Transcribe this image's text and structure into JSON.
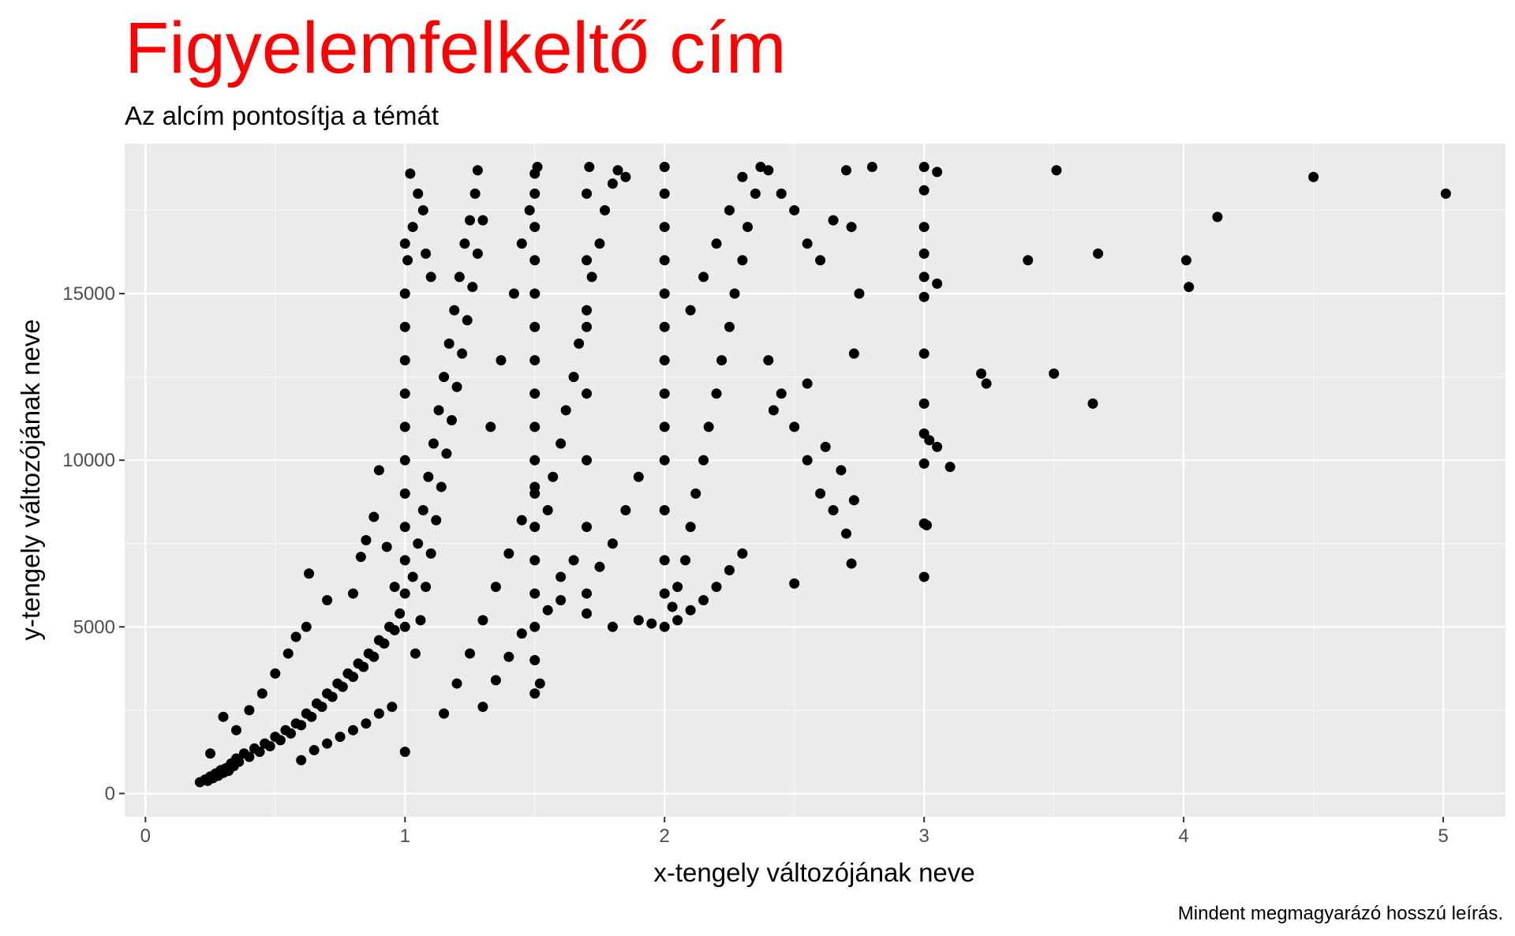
{
  "chart_data": {
    "type": "scatter",
    "title": "Figyelemfelkeltő cím",
    "subtitle": "Az alcím pontosítja a témát",
    "xlabel": "x-tengely változójának neve",
    "ylabel": "y-tengely változójának neve",
    "caption": "Mindent megmagyarázó hosszú leírás.",
    "xlim": [
      -0.08,
      5.24
    ],
    "ylim": [
      -700,
      19500
    ],
    "x_ticks": [
      0,
      1,
      2,
      3,
      4,
      5
    ],
    "x_tick_labels": [
      "0",
      "1",
      "2",
      "3",
      "4",
      "5"
    ],
    "y_ticks": [
      0,
      5000,
      10000,
      15000
    ],
    "y_tick_labels": [
      "0",
      "5000",
      "10000",
      "15000"
    ],
    "grid": true,
    "legend": "none",
    "colors": {
      "title": "#ff0000",
      "panel_background": "#ebebeb",
      "grid_major": "#ffffff",
      "grid_minor": "#f5f5f5",
      "point": "#000000",
      "tick_label": "#4d4d4d"
    },
    "points": [
      [
        0.21,
        340
      ],
      [
        0.23,
        420
      ],
      [
        0.24,
        380
      ],
      [
        0.25,
        510
      ],
      [
        0.26,
        460
      ],
      [
        0.27,
        600
      ],
      [
        0.28,
        530
      ],
      [
        0.29,
        700
      ],
      [
        0.3,
        620
      ],
      [
        0.31,
        760
      ],
      [
        0.32,
        680
      ],
      [
        0.33,
        900
      ],
      [
        0.34,
        820
      ],
      [
        0.35,
        1050
      ],
      [
        0.36,
        950
      ],
      [
        0.38,
        1200
      ],
      [
        0.4,
        1100
      ],
      [
        0.42,
        1350
      ],
      [
        0.44,
        1250
      ],
      [
        0.46,
        1500
      ],
      [
        0.48,
        1420
      ],
      [
        0.5,
        1700
      ],
      [
        0.52,
        1600
      ],
      [
        0.54,
        1900
      ],
      [
        0.56,
        1800
      ],
      [
        0.58,
        2100
      ],
      [
        0.6,
        2050
      ],
      [
        0.62,
        2400
      ],
      [
        0.64,
        2300
      ],
      [
        0.66,
        2700
      ],
      [
        0.68,
        2600
      ],
      [
        0.7,
        3000
      ],
      [
        0.72,
        2900
      ],
      [
        0.74,
        3300
      ],
      [
        0.76,
        3200
      ],
      [
        0.78,
        3600
      ],
      [
        0.8,
        3500
      ],
      [
        0.82,
        3900
      ],
      [
        0.84,
        3800
      ],
      [
        0.86,
        4200
      ],
      [
        0.88,
        4100
      ],
      [
        0.9,
        4600
      ],
      [
        0.92,
        4500
      ],
      [
        0.94,
        5000
      ],
      [
        0.96,
        4900
      ],
      [
        0.98,
        5400
      ],
      [
        0.25,
        1200
      ],
      [
        0.3,
        2300
      ],
      [
        0.35,
        1900
      ],
      [
        0.4,
        2500
      ],
      [
        0.45,
        3000
      ],
      [
        0.5,
        3600
      ],
      [
        0.55,
        4200
      ],
      [
        0.58,
        4700
      ],
      [
        0.62,
        5000
      ],
      [
        0.63,
        6600
      ],
      [
        0.7,
        5800
      ],
      [
        0.8,
        6000
      ],
      [
        0.83,
        7100
      ],
      [
        0.85,
        7600
      ],
      [
        0.88,
        8300
      ],
      [
        0.9,
        9700
      ],
      [
        0.93,
        7400
      ],
      [
        0.96,
        6200
      ],
      [
        0.6,
        1000
      ],
      [
        0.65,
        1300
      ],
      [
        0.7,
        1500
      ],
      [
        0.75,
        1700
      ],
      [
        0.8,
        1900
      ],
      [
        0.85,
        2100
      ],
      [
        0.9,
        2400
      ],
      [
        0.95,
        2600
      ],
      [
        1.0,
        1250
      ],
      [
        1.0,
        5000
      ],
      [
        1.0,
        6000
      ],
      [
        1.0,
        7000
      ],
      [
        1.0,
        8000
      ],
      [
        1.0,
        9000
      ],
      [
        1.0,
        10000
      ],
      [
        1.0,
        11000
      ],
      [
        1.0,
        12000
      ],
      [
        1.0,
        13000
      ],
      [
        1.0,
        14000
      ],
      [
        1.0,
        15000
      ],
      [
        1.01,
        16000
      ],
      [
        1.0,
        16500
      ],
      [
        1.02,
        18600
      ],
      [
        1.03,
        17000
      ],
      [
        1.05,
        18000
      ],
      [
        1.07,
        17500
      ],
      [
        1.08,
        16200
      ],
      [
        1.1,
        15500
      ],
      [
        1.03,
        6500
      ],
      [
        1.05,
        7500
      ],
      [
        1.07,
        8500
      ],
      [
        1.09,
        9500
      ],
      [
        1.11,
        10500
      ],
      [
        1.13,
        11500
      ],
      [
        1.15,
        12500
      ],
      [
        1.17,
        13500
      ],
      [
        1.19,
        14500
      ],
      [
        1.21,
        15500
      ],
      [
        1.23,
        16500
      ],
      [
        1.25,
        17200
      ],
      [
        1.27,
        18000
      ],
      [
        1.28,
        18700
      ],
      [
        1.04,
        4200
      ],
      [
        1.06,
        5200
      ],
      [
        1.08,
        6200
      ],
      [
        1.1,
        7200
      ],
      [
        1.12,
        8200
      ],
      [
        1.14,
        9200
      ],
      [
        1.16,
        10200
      ],
      [
        1.18,
        11200
      ],
      [
        1.2,
        12200
      ],
      [
        1.22,
        13200
      ],
      [
        1.24,
        14200
      ],
      [
        1.26,
        15200
      ],
      [
        1.28,
        16200
      ],
      [
        1.3,
        17200
      ],
      [
        1.15,
        2400
      ],
      [
        1.2,
        3300
      ],
      [
        1.25,
        4200
      ],
      [
        1.3,
        5200
      ],
      [
        1.35,
        6200
      ],
      [
        1.4,
        7200
      ],
      [
        1.45,
        8200
      ],
      [
        1.5,
        9200
      ],
      [
        1.3,
        2600
      ],
      [
        1.35,
        3400
      ],
      [
        1.4,
        4100
      ],
      [
        1.45,
        4800
      ],
      [
        1.33,
        11000
      ],
      [
        1.37,
        13000
      ],
      [
        1.42,
        15000
      ],
      [
        1.45,
        16500
      ],
      [
        1.48,
        17500
      ],
      [
        1.5,
        18600
      ],
      [
        1.5,
        3000
      ],
      [
        1.5,
        4000
      ],
      [
        1.5,
        5000
      ],
      [
        1.5,
        6000
      ],
      [
        1.5,
        7000
      ],
      [
        1.5,
        8000
      ],
      [
        1.5,
        9000
      ],
      [
        1.5,
        10000
      ],
      [
        1.5,
        11000
      ],
      [
        1.5,
        12000
      ],
      [
        1.5,
        13000
      ],
      [
        1.5,
        14000
      ],
      [
        1.5,
        15000
      ],
      [
        1.5,
        16000
      ],
      [
        1.5,
        17000
      ],
      [
        1.5,
        18000
      ],
      [
        1.51,
        18800
      ],
      [
        1.52,
        3300
      ],
      [
        1.55,
        8500
      ],
      [
        1.57,
        9500
      ],
      [
        1.6,
        10500
      ],
      [
        1.62,
        11500
      ],
      [
        1.65,
        12500
      ],
      [
        1.67,
        13500
      ],
      [
        1.7,
        14500
      ],
      [
        1.72,
        15500
      ],
      [
        1.75,
        16500
      ],
      [
        1.77,
        17500
      ],
      [
        1.8,
        18300
      ],
      [
        1.82,
        18700
      ],
      [
        1.85,
        18500
      ],
      [
        1.55,
        5500
      ],
      [
        1.6,
        6500
      ],
      [
        1.65,
        7000
      ],
      [
        1.7,
        6000
      ],
      [
        1.75,
        6800
      ],
      [
        1.8,
        7500
      ],
      [
        1.85,
        8500
      ],
      [
        1.9,
        9500
      ],
      [
        1.6,
        5800
      ],
      [
        1.7,
        5400
      ],
      [
        1.8,
        5000
      ],
      [
        1.9,
        5200
      ],
      [
        1.95,
        5100
      ],
      [
        1.7,
        8000
      ],
      [
        1.7,
        10000
      ],
      [
        1.7,
        12000
      ],
      [
        1.7,
        14000
      ],
      [
        1.7,
        16000
      ],
      [
        1.7,
        18000
      ],
      [
        1.71,
        18800
      ],
      [
        2.0,
        5000
      ],
      [
        2.0,
        6000
      ],
      [
        2.0,
        7000
      ],
      [
        2.0,
        8500
      ],
      [
        2.0,
        10000
      ],
      [
        2.0,
        11000
      ],
      [
        2.0,
        12000
      ],
      [
        2.0,
        13000
      ],
      [
        2.0,
        14000
      ],
      [
        2.0,
        15000
      ],
      [
        2.0,
        16000
      ],
      [
        2.0,
        17000
      ],
      [
        2.0,
        18000
      ],
      [
        2.0,
        18800
      ],
      [
        2.03,
        5600
      ],
      [
        2.05,
        6200
      ],
      [
        2.08,
        7000
      ],
      [
        2.1,
        8000
      ],
      [
        2.12,
        9000
      ],
      [
        2.15,
        10000
      ],
      [
        2.17,
        11000
      ],
      [
        2.2,
        12000
      ],
      [
        2.22,
        13000
      ],
      [
        2.25,
        14000
      ],
      [
        2.27,
        15000
      ],
      [
        2.3,
        16000
      ],
      [
        2.32,
        17000
      ],
      [
        2.35,
        18000
      ],
      [
        2.37,
        18800
      ],
      [
        2.05,
        5200
      ],
      [
        2.1,
        5500
      ],
      [
        2.15,
        5800
      ],
      [
        2.2,
        6200
      ],
      [
        2.25,
        6700
      ],
      [
        2.3,
        7200
      ],
      [
        2.1,
        14500
      ],
      [
        2.15,
        15500
      ],
      [
        2.2,
        16500
      ],
      [
        2.25,
        17500
      ],
      [
        2.3,
        18500
      ],
      [
        2.4,
        18700
      ],
      [
        2.45,
        18000
      ],
      [
        2.5,
        17500
      ],
      [
        2.55,
        16500
      ],
      [
        2.6,
        16000
      ],
      [
        2.65,
        17200
      ],
      [
        2.7,
        18700
      ],
      [
        2.72,
        17000
      ],
      [
        2.73,
        13200
      ],
      [
        2.75,
        15000
      ],
      [
        2.8,
        18800
      ],
      [
        2.4,
        13000
      ],
      [
        2.45,
        12000
      ],
      [
        2.5,
        11000
      ],
      [
        2.55,
        10000
      ],
      [
        2.6,
        9000
      ],
      [
        2.65,
        8500
      ],
      [
        2.7,
        7800
      ],
      [
        2.5,
        6300
      ],
      [
        2.72,
        6900
      ],
      [
        2.73,
        8800
      ],
      [
        2.68,
        9700
      ],
      [
        2.62,
        10400
      ],
      [
        2.55,
        12300
      ],
      [
        2.42,
        11500
      ],
      [
        3.0,
        6500
      ],
      [
        3.0,
        8100
      ],
      [
        3.0,
        9900
      ],
      [
        3.0,
        10800
      ],
      [
        3.0,
        11700
      ],
      [
        3.0,
        13200
      ],
      [
        3.0,
        14900
      ],
      [
        3.0,
        15500
      ],
      [
        3.0,
        16200
      ],
      [
        3.0,
        17000
      ],
      [
        3.0,
        18100
      ],
      [
        3.0,
        18800
      ],
      [
        3.01,
        8050
      ],
      [
        3.02,
        10600
      ],
      [
        3.05,
        18650
      ],
      [
        3.05,
        10400
      ],
      [
        3.05,
        15300
      ],
      [
        3.1,
        9800
      ],
      [
        3.22,
        12600
      ],
      [
        3.24,
        12300
      ],
      [
        3.4,
        16000
      ],
      [
        3.5,
        12600
      ],
      [
        3.51,
        18700
      ],
      [
        3.65,
        11700
      ],
      [
        3.67,
        16200
      ],
      [
        4.01,
        16000
      ],
      [
        4.02,
        15200
      ],
      [
        4.13,
        17300
      ],
      [
        4.5,
        18500
      ],
      [
        5.01,
        18000
      ]
    ]
  }
}
